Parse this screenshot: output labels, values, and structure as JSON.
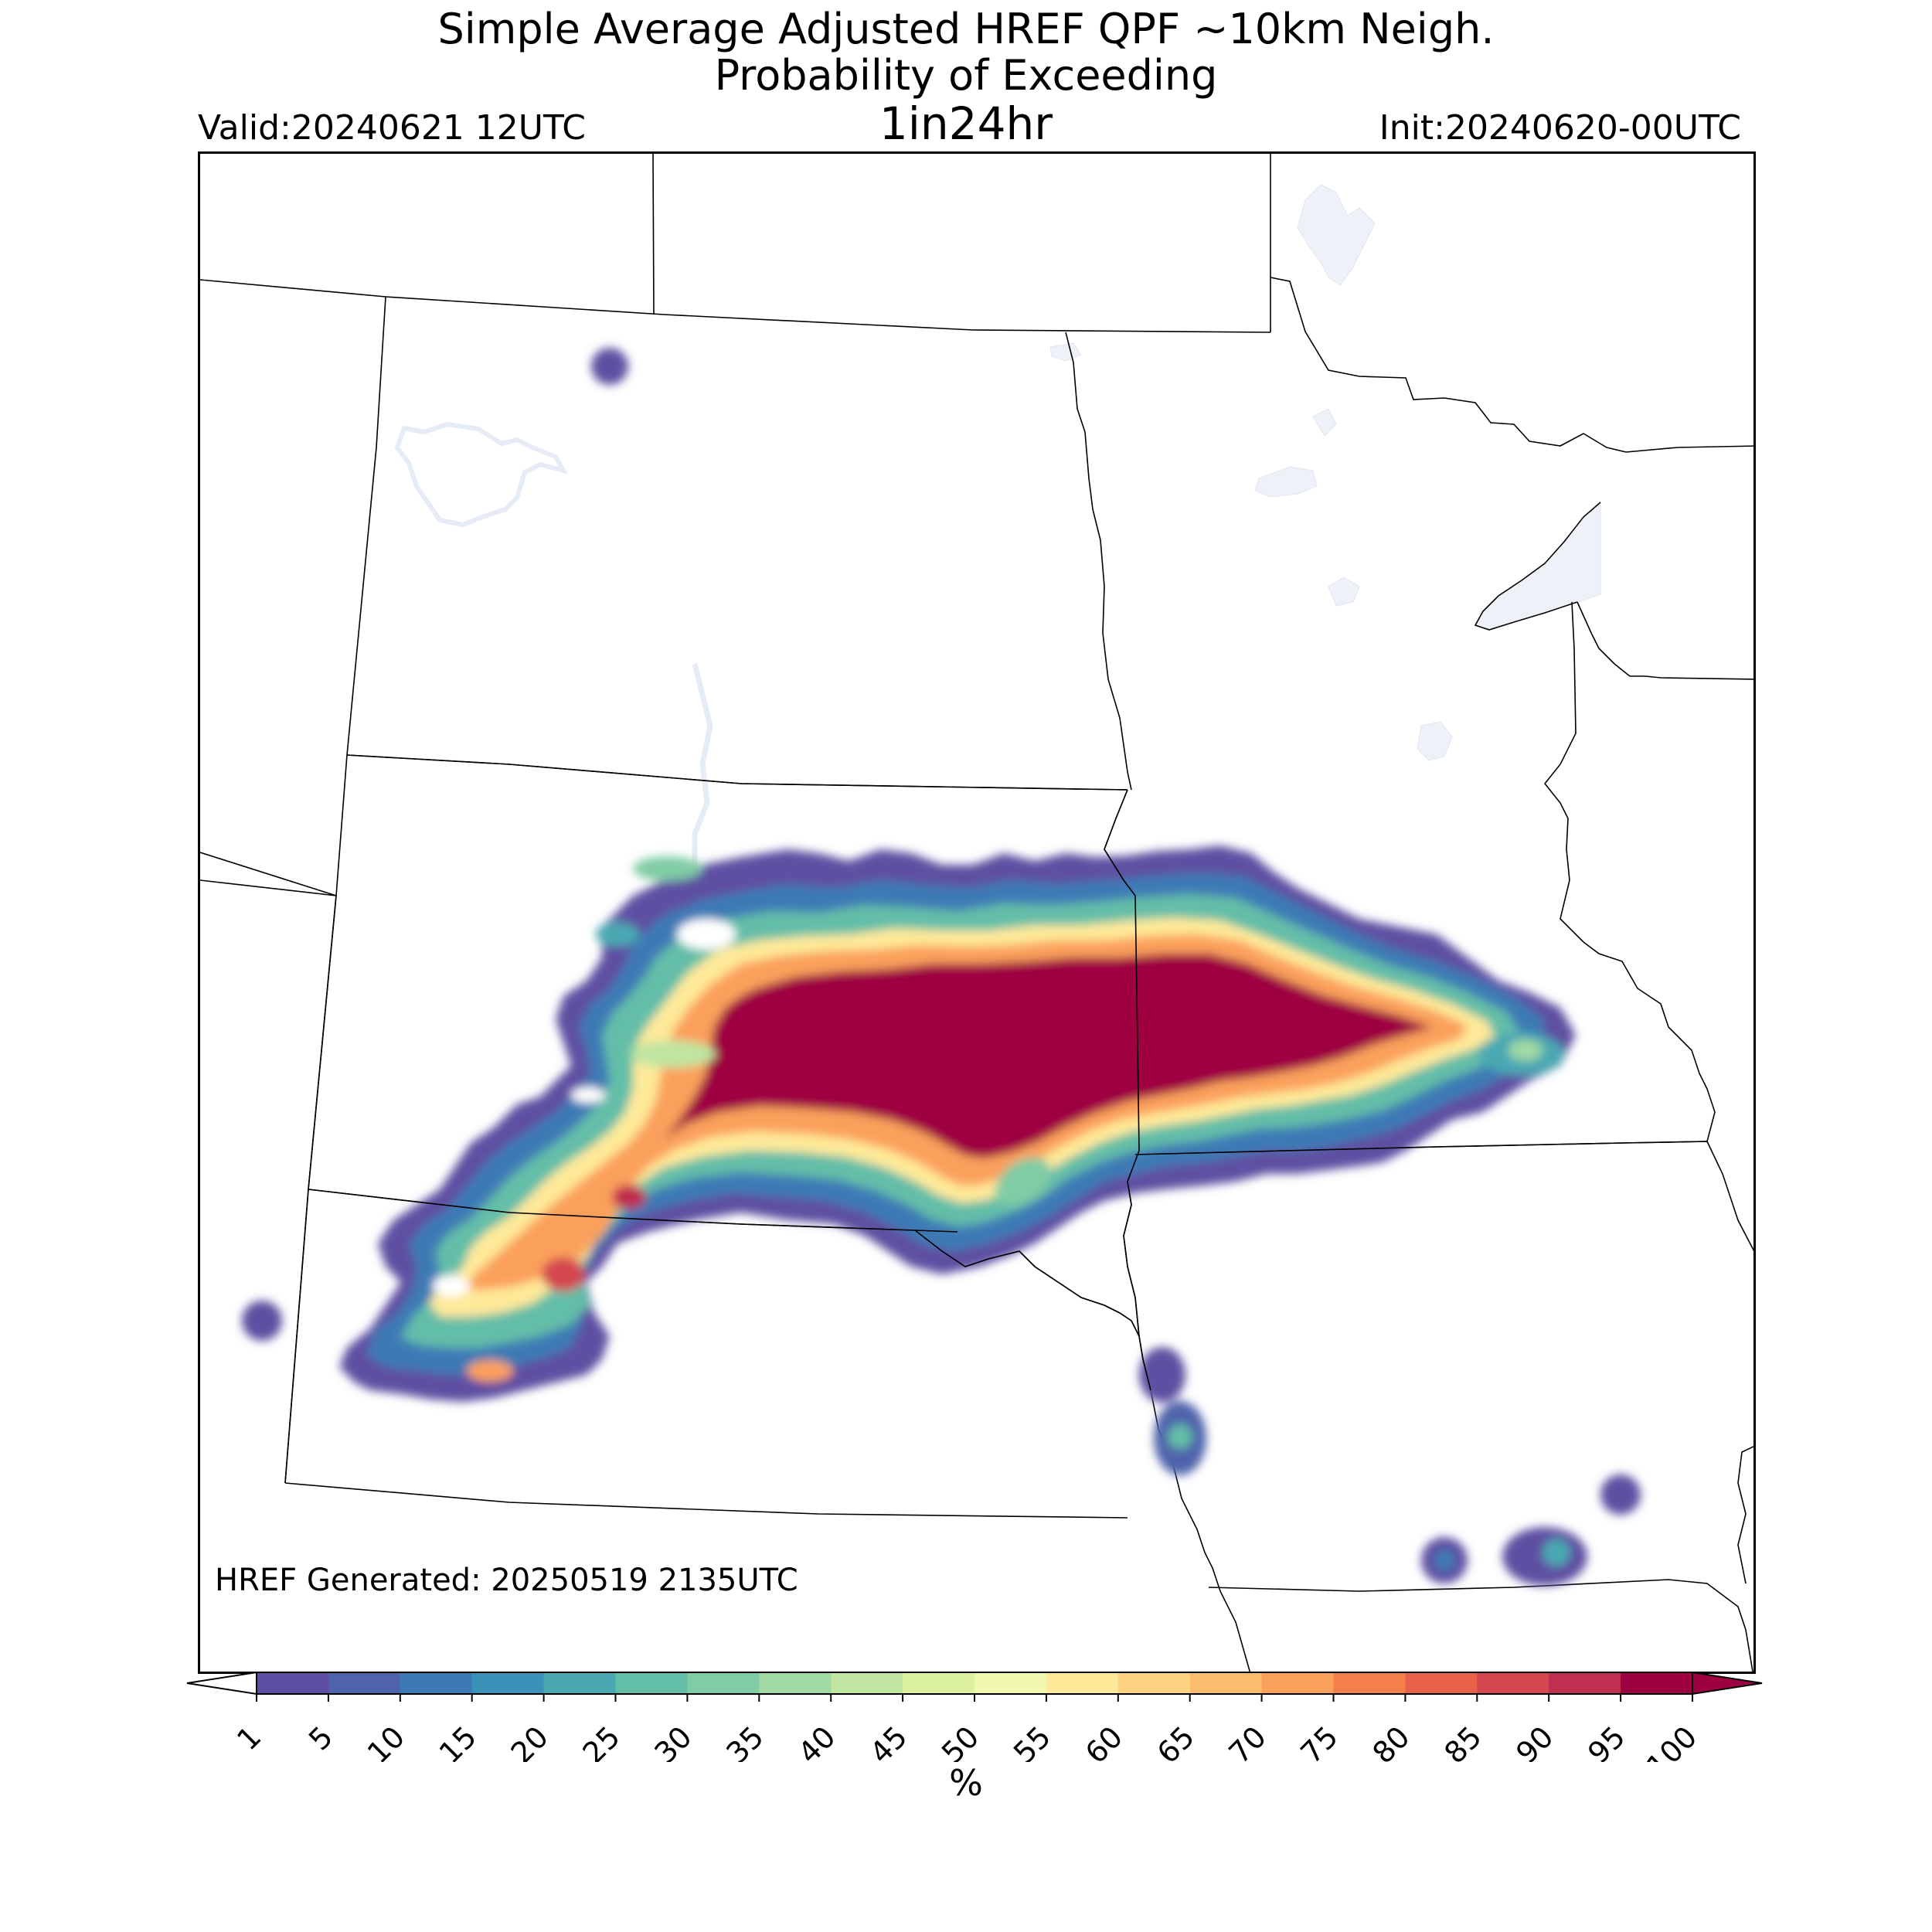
{
  "title": {
    "line1": "Simple Average Adjusted HREF QPF ~10km Neigh.",
    "line2": "Probability of Exceeding",
    "line3": "1in24hr",
    "valid": "Valid:20240621 12UTC",
    "init": "Init:20240620-00UTC"
  },
  "footer": {
    "generated": "HREF Generated: 20250519 2135UTC"
  },
  "colorbar": {
    "unit": "%",
    "ticks": [
      "1",
      "5",
      "10",
      "15",
      "20",
      "25",
      "30",
      "35",
      "40",
      "45",
      "50",
      "55",
      "60",
      "65",
      "70",
      "75",
      "80",
      "85",
      "90",
      "95",
      "100"
    ],
    "colors": [
      "#5e4fa2",
      "#4f63ab",
      "#3d7ab5",
      "#3a92b9",
      "#4aa8b2",
      "#63bea8",
      "#80cca5",
      "#a0d9a4",
      "#bfe5a0",
      "#dcf19f",
      "#f3f8b0",
      "#fee999",
      "#fdd382",
      "#fdbd6f",
      "#fba05b",
      "#f57f4b",
      "#e8614a",
      "#d44750",
      "#bf2f4f",
      "#9e0142"
    ],
    "extend_low": "#ffffff",
    "extend_high": "#9e0142"
  },
  "map": {
    "region": "Northern Plains / Upper Midwest",
    "lake_color": "#eef2f8",
    "boundary_color": "#000000",
    "precip_field": "probability of exceeding 1 in 24hr"
  }
}
